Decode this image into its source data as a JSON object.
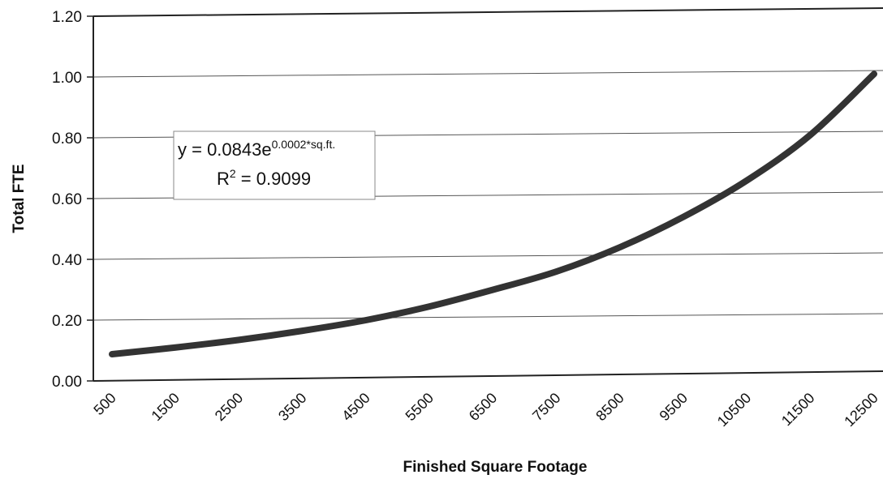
{
  "chart_data": {
    "type": "line",
    "xlabel": "Finished Square Footage",
    "ylabel": "Total FTE",
    "categories": [
      "500",
      "1500",
      "2500",
      "3500",
      "4500",
      "5500",
      "6500",
      "7500",
      "8500",
      "9500",
      "10500",
      "11500",
      "12500"
    ],
    "ylim": [
      0,
      1.2
    ],
    "y_ticks": [
      "0.00",
      "0.20",
      "0.40",
      "0.60",
      "0.80",
      "1.00",
      "1.20"
    ],
    "grid": true,
    "series": [
      {
        "values": [
          0.088,
          0.11,
          0.135,
          0.165,
          0.2,
          0.245,
          0.3,
          0.36,
          0.44,
          0.54,
          0.66,
          0.81,
          1.01
        ]
      }
    ],
    "annotation": {
      "eq_prefix": "y = 0.0843e",
      "eq_exponent": "0.0002*sq.ft.",
      "r2_prefix": "R",
      "r2_exponent": "2",
      "r2_value": " = 0.9099"
    },
    "colors": {
      "line": "#333333",
      "grid": "#555555",
      "frame": "#222222"
    }
  }
}
